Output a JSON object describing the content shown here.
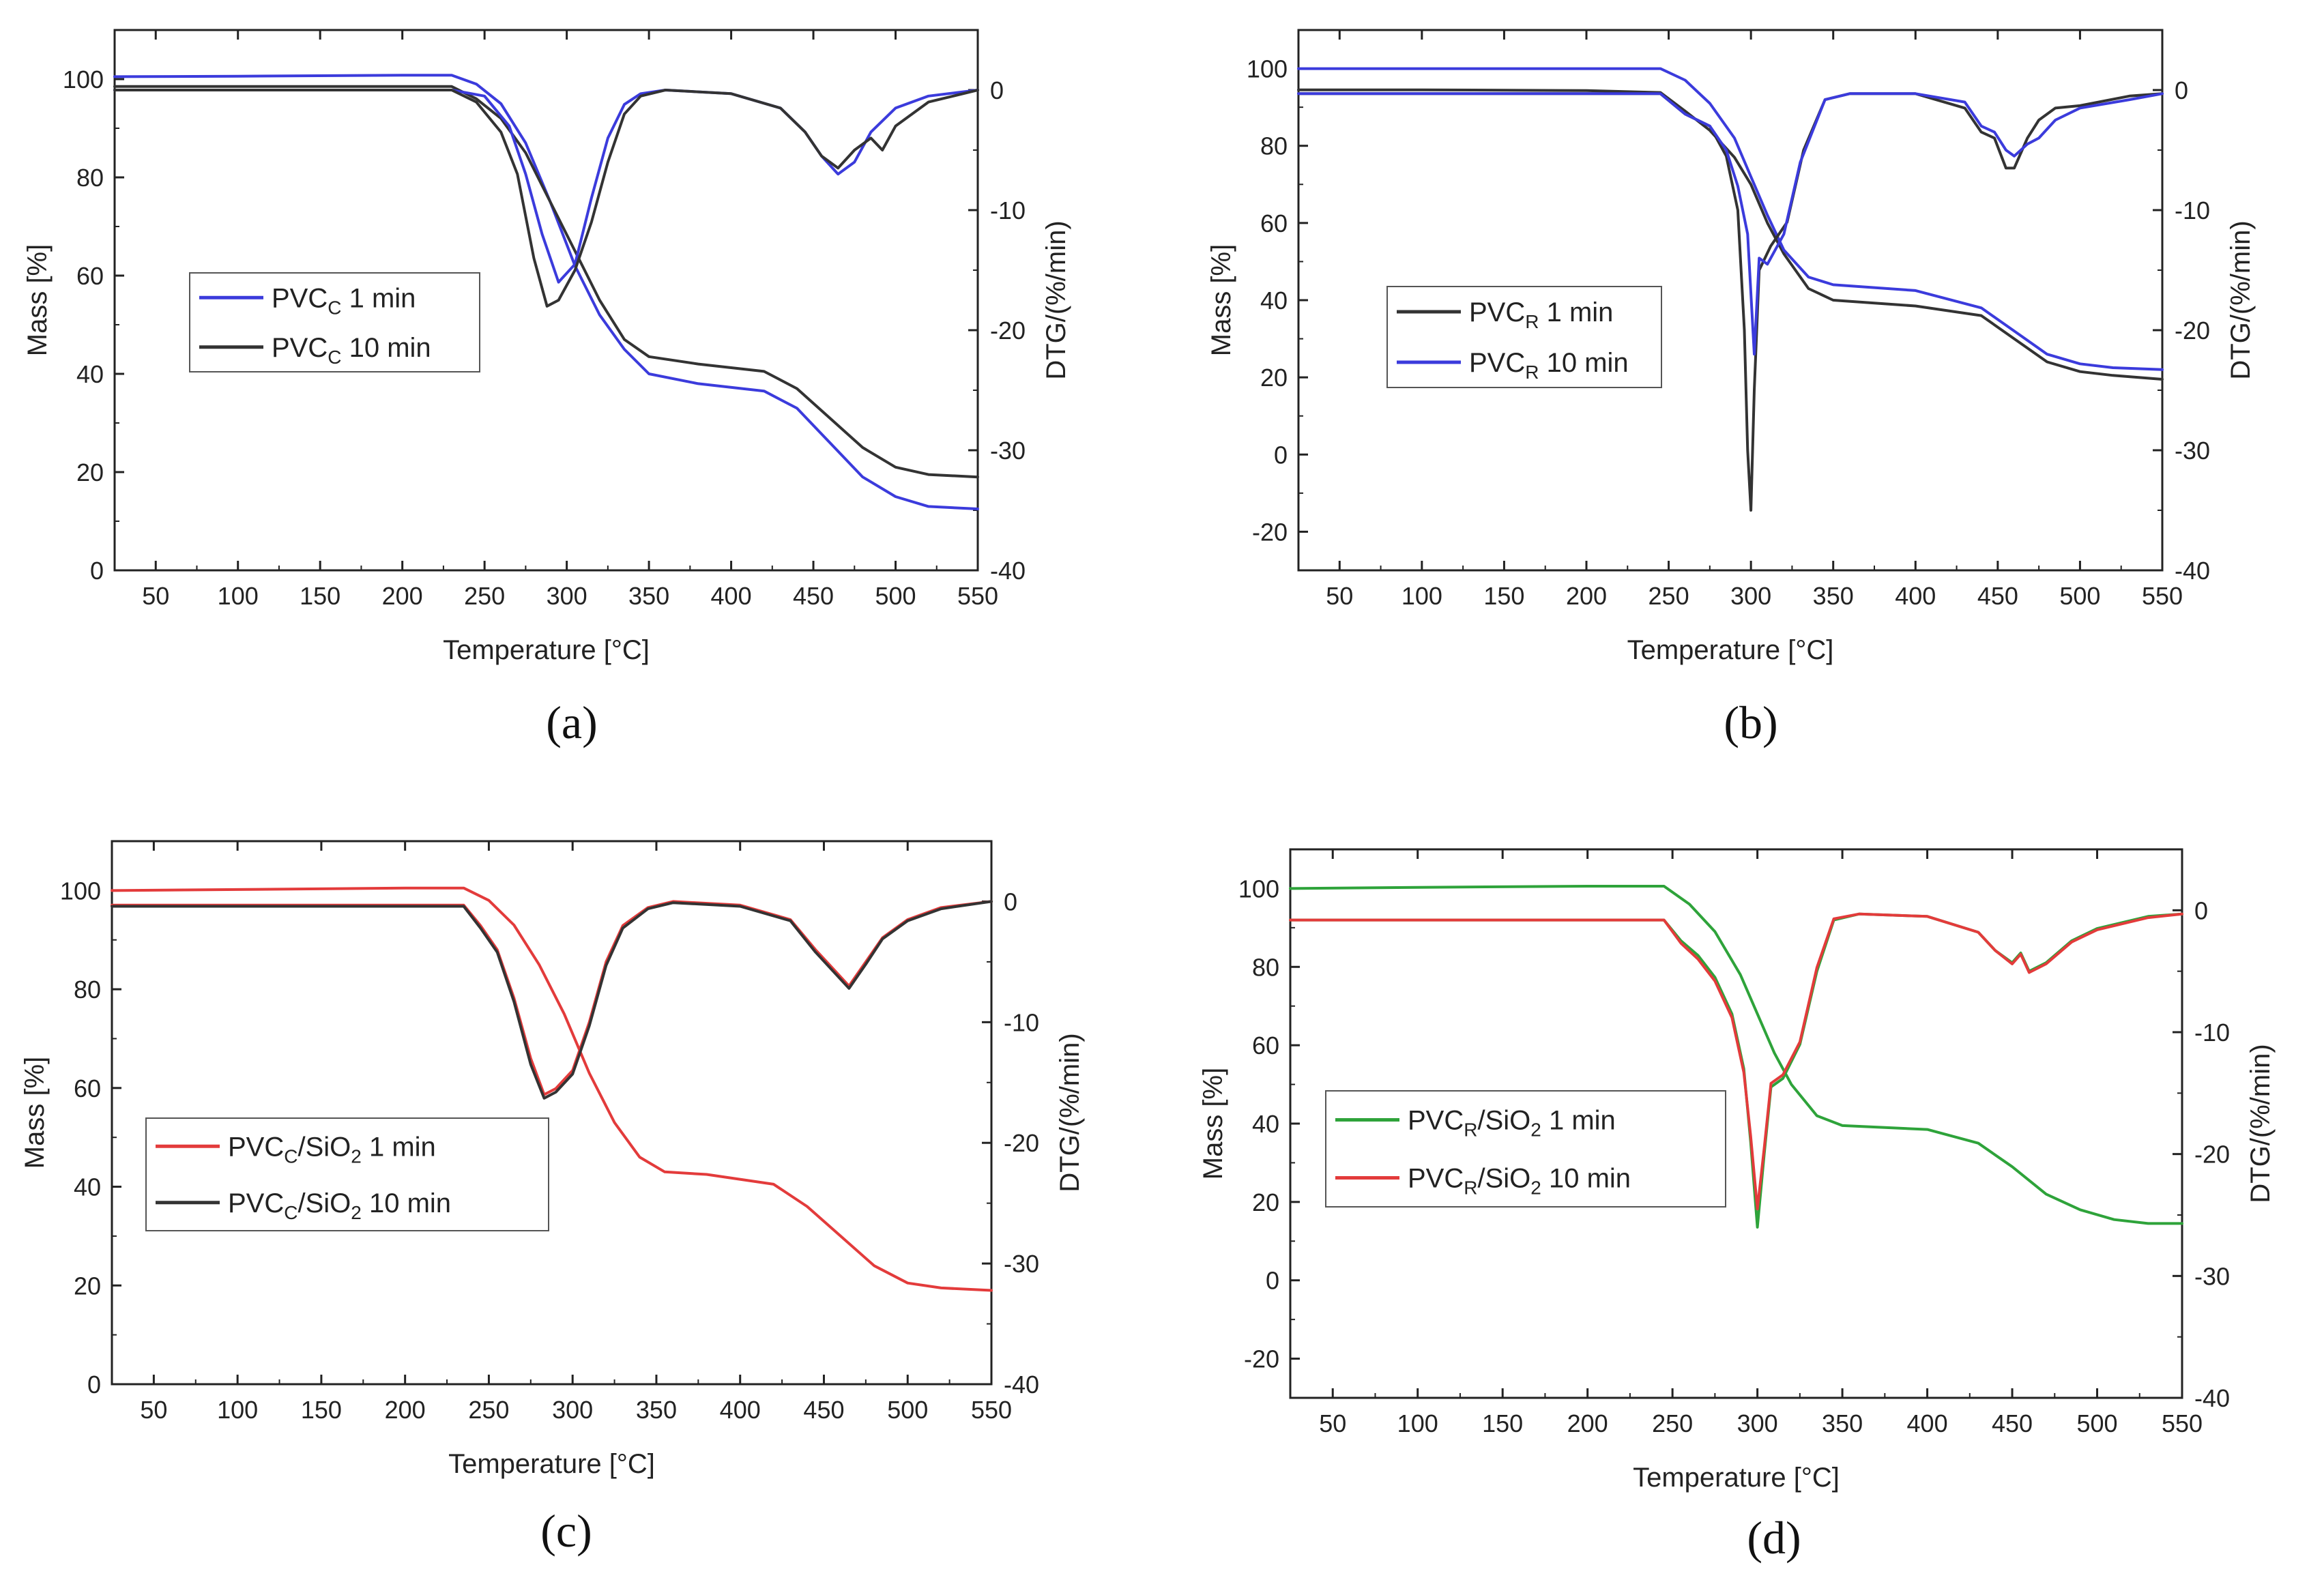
{
  "figure": {
    "captions": [
      "(a)",
      "(b)",
      "(c)",
      "(d)"
    ]
  },
  "chart_data": [
    {
      "type": "line",
      "panel": "a",
      "xlabel": "Temperature [°C]",
      "ylabel": "Mass [%]",
      "y2label": "DTG/(%/min)",
      "xlim": [
        25,
        550
      ],
      "ylim": [
        0,
        110
      ],
      "y2lim": [
        -40,
        5
      ],
      "xticks": [
        50,
        100,
        150,
        200,
        250,
        300,
        350,
        400,
        450,
        500,
        550
      ],
      "yticks": [
        0,
        20,
        40,
        60,
        80,
        100
      ],
      "y2ticks": [
        0,
        -10,
        -20,
        -30,
        -40
      ],
      "legend": {
        "position": "middle-left",
        "entries": [
          {
            "base": "PVC",
            "sub": "C",
            "suffix": "  1 min",
            "color": "#3b3bdc"
          },
          {
            "base": "PVC",
            "sub": "C",
            "suffix": " 10 min",
            "color": "#333333"
          }
        ]
      },
      "series": [
        {
          "name": "PVCC 1 min mass",
          "color": "#3b3bdc",
          "axis": "y",
          "x": [
            25,
            100,
            200,
            230,
            245,
            260,
            275,
            290,
            305,
            320,
            335,
            350,
            380,
            420,
            440,
            460,
            480,
            500,
            520,
            550
          ],
          "y": [
            100.5,
            100.6,
            100.8,
            100.8,
            99,
            95,
            87,
            75,
            62,
            52,
            45,
            40,
            38,
            36.5,
            33,
            26,
            19,
            15,
            13,
            12.5
          ]
        },
        {
          "name": "PVCC 10 min mass",
          "color": "#333333",
          "axis": "y",
          "x": [
            25,
            100,
            200,
            230,
            245,
            260,
            275,
            290,
            305,
            320,
            335,
            350,
            380,
            420,
            440,
            460,
            480,
            500,
            520,
            550
          ],
          "y": [
            98.5,
            98.5,
            98.5,
            98.5,
            96,
            92,
            85,
            75,
            65,
            55,
            47,
            43.5,
            42,
            40.5,
            37,
            31,
            25,
            21,
            19.5,
            19
          ]
        },
        {
          "name": "PVCC 1 min DTG",
          "color": "#3b3bdc",
          "axis": "y2",
          "x": [
            25,
            230,
            250,
            265,
            275,
            285,
            295,
            305,
            315,
            325,
            335,
            345,
            360,
            400,
            430,
            445,
            455,
            465,
            475,
            485,
            500,
            520,
            550
          ],
          "y": [
            0,
            0,
            -0.5,
            -3,
            -7,
            -12,
            -16,
            -14.5,
            -9,
            -4,
            -1.2,
            -0.3,
            0,
            -0.3,
            -1.5,
            -3.5,
            -5.5,
            -7,
            -6,
            -3.5,
            -1.5,
            -0.5,
            0
          ]
        },
        {
          "name": "PVCC 10 min DTG",
          "color": "#333333",
          "axis": "y2",
          "x": [
            25,
            230,
            245,
            260,
            270,
            280,
            288,
            295,
            305,
            315,
            325,
            335,
            345,
            360,
            400,
            430,
            445,
            455,
            465,
            475,
            485,
            492,
            500,
            520,
            550
          ],
          "y": [
            0,
            0,
            -1,
            -3.5,
            -7,
            -14,
            -18,
            -17.5,
            -15,
            -11,
            -6,
            -2,
            -0.5,
            0,
            -0.3,
            -1.5,
            -3.5,
            -5.5,
            -6.5,
            -5,
            -4,
            -5,
            -3,
            -1,
            0
          ]
        }
      ]
    },
    {
      "type": "line",
      "panel": "b",
      "xlabel": "Temperature [°C]",
      "ylabel": "Mass [%]",
      "y2label": "DTG/(%/min)",
      "xlim": [
        25,
        550
      ],
      "ylim": [
        -30,
        110
      ],
      "y2lim": [
        -40,
        5
      ],
      "xticks": [
        50,
        100,
        150,
        200,
        250,
        300,
        350,
        400,
        450,
        500,
        550
      ],
      "yticks": [
        -20,
        0,
        20,
        40,
        60,
        80,
        100
      ],
      "y2ticks": [
        0,
        -10,
        -20,
        -30,
        -40
      ],
      "legend": {
        "position": "middle-left",
        "entries": [
          {
            "base": "PVC",
            "sub": "R",
            "suffix": "  1 min",
            "color": "#333333"
          },
          {
            "base": "PVC",
            "sub": "R",
            "suffix": " 10 min",
            "color": "#3b3bdc"
          }
        ]
      },
      "series": [
        {
          "name": "PVCR 1 min mass",
          "color": "#333333",
          "axis": "y",
          "x": [
            25,
            100,
            200,
            245,
            260,
            275,
            290,
            300,
            310,
            320,
            335,
            350,
            400,
            440,
            460,
            480,
            500,
            520,
            550
          ],
          "y": [
            94.5,
            94.5,
            94.3,
            93.8,
            89,
            84,
            77,
            70,
            60,
            52,
            43,
            40,
            38.5,
            36,
            30,
            24,
            21.5,
            20.5,
            19.5
          ]
        },
        {
          "name": "PVCR 10 min mass",
          "color": "#3b3bdc",
          "axis": "y",
          "x": [
            25,
            100,
            200,
            245,
            260,
            275,
            290,
            300,
            310,
            320,
            335,
            350,
            400,
            440,
            460,
            480,
            500,
            520,
            550
          ],
          "y": [
            100,
            100,
            100,
            100,
            97,
            91,
            82,
            72,
            62,
            53,
            46,
            44,
            42.5,
            38,
            32,
            26,
            23.5,
            22.5,
            22
          ]
        },
        {
          "name": "PVCR 1 min DTG",
          "color": "#333333",
          "axis": "y2",
          "x": [
            25,
            245,
            260,
            275,
            285,
            292,
            296,
            298,
            300,
            302,
            305,
            312,
            322,
            332,
            345,
            360,
            400,
            430,
            440,
            448,
            455,
            460,
            468,
            475,
            485,
            500,
            530,
            550
          ],
          "y": [
            -0.3,
            -0.3,
            -2,
            -3,
            -5.5,
            -10,
            -20,
            -30,
            -35,
            -25,
            -15,
            -13,
            -11,
            -5,
            -0.8,
            -0.3,
            -0.3,
            -1.5,
            -3.5,
            -4,
            -6.5,
            -6.5,
            -4,
            -2.5,
            -1.5,
            -1.3,
            -0.5,
            -0.3
          ]
        },
        {
          "name": "PVCR 10 min DTG",
          "color": "#3b3bdc",
          "axis": "y2",
          "x": [
            25,
            245,
            260,
            275,
            285,
            292,
            298,
            302,
            305,
            310,
            320,
            330,
            345,
            360,
            400,
            430,
            440,
            448,
            455,
            460,
            468,
            475,
            485,
            500,
            530,
            550
          ],
          "y": [
            -0.3,
            -0.3,
            -2,
            -3,
            -5,
            -8,
            -12,
            -22,
            -14,
            -14.5,
            -12,
            -6,
            -0.8,
            -0.3,
            -0.3,
            -1,
            -3,
            -3.5,
            -5,
            -5.5,
            -4.5,
            -4,
            -2.5,
            -1.5,
            -0.8,
            -0.3
          ]
        }
      ]
    },
    {
      "type": "line",
      "panel": "c",
      "xlabel": "Temperature [°C]",
      "ylabel": "Mass [%]",
      "y2label": "DTG/(%/min)",
      "xlim": [
        25,
        550
      ],
      "ylim": [
        0,
        110
      ],
      "y2lim": [
        -40,
        5
      ],
      "xticks": [
        50,
        100,
        150,
        200,
        250,
        300,
        350,
        400,
        450,
        500,
        550
      ],
      "yticks": [
        0,
        20,
        40,
        60,
        80,
        100
      ],
      "y2ticks": [
        0,
        -10,
        -20,
        -30,
        -40
      ],
      "legend": {
        "position": "bottom-left",
        "entries": [
          {
            "base": "PVC",
            "sub": "C",
            "mid": "/SiO",
            "sub2": "2",
            "suffix": "  1 min",
            "color": "#e33b3b"
          },
          {
            "base": "PVC",
            "sub": "C",
            "mid": "/SiO",
            "sub2": "2",
            "suffix": " 10 min",
            "color": "#333333"
          }
        ]
      },
      "series": [
        {
          "name": "PVCC/SiO2 1 min mass",
          "color": "#e33b3b",
          "axis": "y",
          "x": [
            25,
            100,
            200,
            235,
            250,
            265,
            280,
            295,
            310,
            325,
            340,
            355,
            380,
            420,
            440,
            460,
            480,
            500,
            520,
            550
          ],
          "y": [
            100,
            100.2,
            100.5,
            100.5,
            98,
            93,
            85,
            75,
            63,
            53,
            46,
            43,
            42.5,
            40.5,
            36,
            30,
            24,
            20.5,
            19.5,
            19
          ]
        },
        {
          "name": "PVCC/SiO2 1 min DTG",
          "color": "#e33b3b",
          "axis": "y2",
          "x": [
            25,
            235,
            245,
            255,
            265,
            275,
            283,
            290,
            300,
            310,
            320,
            330,
            345,
            360,
            400,
            430,
            445,
            455,
            465,
            475,
            485,
            500,
            520,
            550
          ],
          "y": [
            -0.3,
            -0.3,
            -2,
            -4,
            -8,
            -13,
            -16,
            -15.5,
            -14,
            -10,
            -5,
            -2,
            -0.5,
            0,
            -0.3,
            -1.5,
            -4,
            -5.5,
            -7,
            -5,
            -3,
            -1.5,
            -0.5,
            0
          ]
        },
        {
          "name": "PVCC/SiO2 10 min DTG",
          "color": "#333333",
          "axis": "y2",
          "x": [
            25,
            235,
            245,
            255,
            265,
            275,
            283,
            290,
            300,
            310,
            320,
            330,
            345,
            360,
            400,
            430,
            445,
            455,
            465,
            475,
            485,
            500,
            520,
            550
          ],
          "y": [
            -0.4,
            -0.4,
            -2.2,
            -4.2,
            -8.3,
            -13.5,
            -16.3,
            -15.8,
            -14.3,
            -10.3,
            -5.3,
            -2.2,
            -0.6,
            -0.1,
            -0.4,
            -1.6,
            -4.2,
            -5.7,
            -7.2,
            -5.2,
            -3.1,
            -1.6,
            -0.6,
            0
          ]
        }
      ]
    },
    {
      "type": "line",
      "panel": "d",
      "xlabel": "Temperature [°C]",
      "ylabel": "Mass [%]",
      "y2label": "DTG/(%/min)",
      "xlim": [
        25,
        550
      ],
      "ylim": [
        -30,
        110
      ],
      "y2lim": [
        -40,
        5
      ],
      "xticks": [
        50,
        100,
        150,
        200,
        250,
        300,
        350,
        400,
        450,
        500,
        550
      ],
      "yticks": [
        -20,
        0,
        20,
        40,
        60,
        80,
        100
      ],
      "y2ticks": [
        0,
        -10,
        -20,
        -30,
        -40
      ],
      "legend": {
        "position": "bottom-left",
        "entries": [
          {
            "base": "PVC",
            "sub": "R",
            "mid": "/SiO",
            "sub2": "2",
            "suffix": "  1 min",
            "color": "#2ea33a"
          },
          {
            "base": "PVC",
            "sub": "R",
            "mid": "/SiO",
            "sub2": "2",
            "suffix": " 10 min",
            "color": "#e33b3b"
          }
        ]
      },
      "series": [
        {
          "name": "PVCR/SiO2 1 min mass",
          "color": "#2ea33a",
          "axis": "y",
          "x": [
            25,
            100,
            200,
            245,
            260,
            275,
            290,
            300,
            310,
            320,
            335,
            350,
            400,
            430,
            450,
            470,
            490,
            510,
            530,
            550
          ],
          "y": [
            100,
            100.3,
            100.6,
            100.6,
            96,
            89,
            78,
            68,
            58,
            50,
            42,
            39.5,
            38.5,
            35,
            29,
            22,
            18,
            15.5,
            14.5,
            14.5
          ]
        },
        {
          "name": "PVCR/SiO2 1 min DTG",
          "color": "#2ea33a",
          "axis": "y2",
          "x": [
            25,
            245,
            255,
            265,
            275,
            285,
            292,
            296,
            300,
            304,
            308,
            315,
            325,
            335,
            345,
            360,
            400,
            430,
            440,
            450,
            455,
            460,
            470,
            485,
            500,
            530,
            550
          ],
          "y": [
            -0.8,
            -0.8,
            -2.5,
            -3.7,
            -5.5,
            -8.5,
            -13,
            -19,
            -26,
            -20,
            -14.5,
            -13.8,
            -11,
            -5,
            -0.8,
            -0.3,
            -0.5,
            -1.8,
            -3.3,
            -4.3,
            -3.5,
            -5,
            -4.3,
            -2.5,
            -1.5,
            -0.5,
            -0.3
          ]
        },
        {
          "name": "PVCR/SiO2 10 min DTG",
          "color": "#e33b3b",
          "axis": "y2",
          "x": [
            25,
            245,
            255,
            265,
            275,
            285,
            292,
            296,
            300,
            304,
            308,
            315,
            325,
            335,
            345,
            360,
            400,
            430,
            440,
            450,
            455,
            460,
            470,
            485,
            500,
            530,
            550
          ],
          "y": [
            -0.8,
            -0.8,
            -2.7,
            -4,
            -5.8,
            -8.8,
            -13.3,
            -18.5,
            -24.5,
            -19.5,
            -14.2,
            -13.5,
            -10.8,
            -4.7,
            -0.7,
            -0.3,
            -0.5,
            -1.8,
            -3.3,
            -4.4,
            -3.6,
            -5.1,
            -4.4,
            -2.6,
            -1.6,
            -0.6,
            -0.3
          ]
        }
      ]
    }
  ]
}
